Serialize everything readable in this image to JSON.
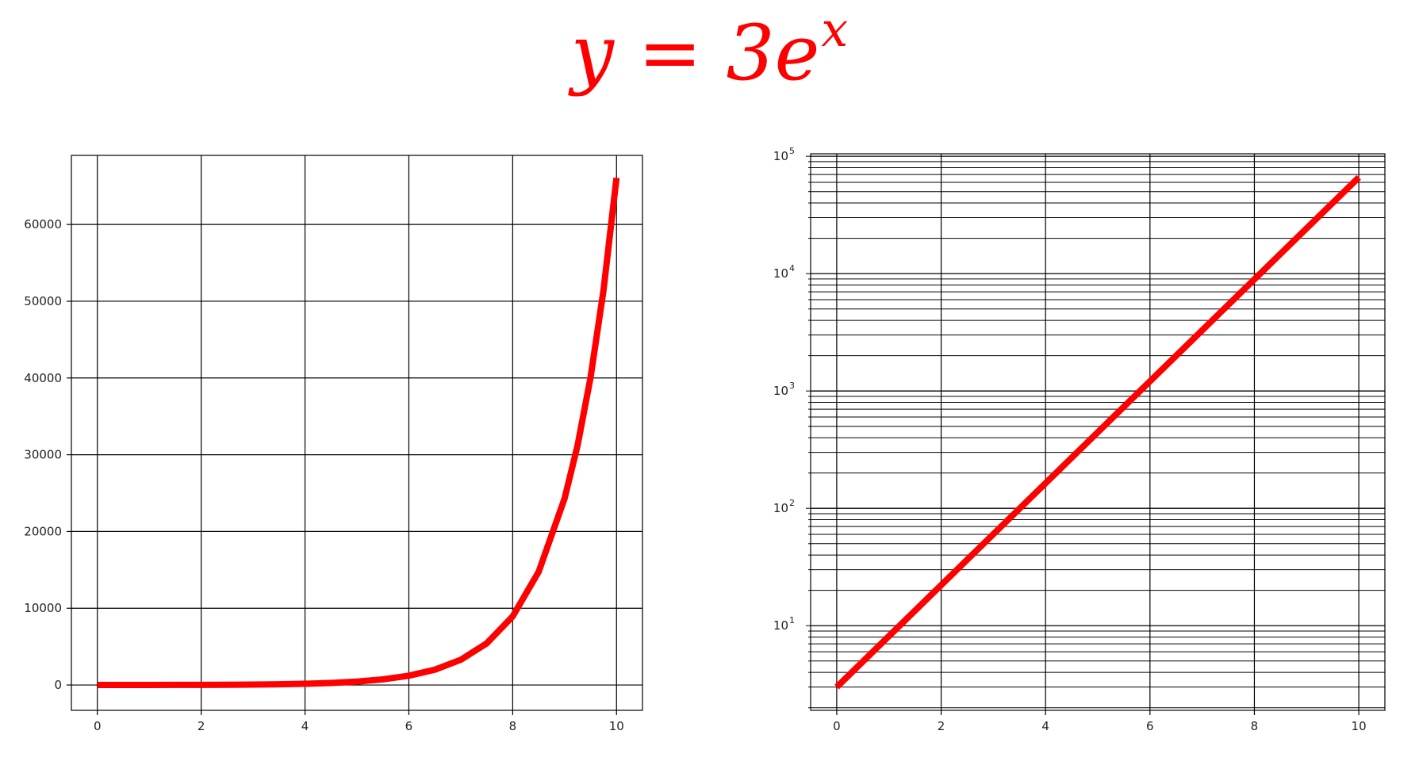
{
  "title": {
    "base": "y = 3e",
    "exponent": "x"
  },
  "colors": {
    "curve": "#ff0000",
    "grid": "#000000",
    "title": "#ff0000"
  },
  "chart_data": [
    {
      "type": "line",
      "function": "3e^x",
      "x": [
        0,
        0.5,
        1,
        1.5,
        2,
        2.5,
        3,
        3.5,
        4,
        4.5,
        5,
        5.5,
        6,
        6.5,
        7,
        7.5,
        8,
        8.5,
        9,
        9.25,
        9.5,
        9.75,
        10
      ],
      "series": [
        {
          "values": [
            3,
            4.95,
            8.15,
            13.4,
            22.2,
            36.5,
            60.3,
            99.3,
            163.8,
            270,
            445,
            734,
            1210,
            1995,
            3290,
            5424,
            8943,
            14745,
            24310,
            31215,
            40081,
            51465,
            66079
          ]
        }
      ],
      "xlim": [
        -0.5,
        10.5
      ],
      "ylim": [
        -3300,
        69000
      ],
      "xticks": [
        "0",
        "2",
        "4",
        "6",
        "8",
        "10"
      ],
      "yticks": [
        "0",
        "10000",
        "20000",
        "30000",
        "40000",
        "50000",
        "60000"
      ],
      "yscale": "linear",
      "grid": true,
      "xlabel": "",
      "ylabel": ""
    },
    {
      "type": "line",
      "function": "3e^x",
      "x": [
        0,
        10
      ],
      "series": [
        {
          "values": [
            3,
            66079
          ]
        }
      ],
      "xlim": [
        -0.5,
        10.5
      ],
      "ylim": [
        1.9,
        105000
      ],
      "xticks": [
        "0",
        "2",
        "4",
        "6",
        "8",
        "10"
      ],
      "yticks": [
        {
          "base": "10",
          "exp": "1"
        },
        {
          "base": "10",
          "exp": "2"
        },
        {
          "base": "10",
          "exp": "3"
        },
        {
          "base": "10",
          "exp": "4"
        },
        {
          "base": "10",
          "exp": "5"
        }
      ],
      "yscale": "log",
      "grid": true,
      "minor_grid": true,
      "xlabel": "",
      "ylabel": ""
    }
  ]
}
